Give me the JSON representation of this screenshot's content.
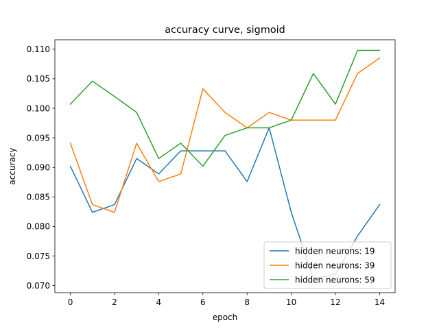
{
  "chart_data": {
    "type": "line",
    "title": "accuracy curve, sigmoid",
    "xlabel": "epoch",
    "ylabel": "accuracy",
    "x": [
      0,
      1,
      2,
      3,
      4,
      5,
      6,
      7,
      8,
      9,
      10,
      11,
      12,
      13,
      14
    ],
    "xlim": [
      -0.7,
      14.7
    ],
    "ylim": [
      0.0688,
      0.1116
    ],
    "xticks": [
      0,
      2,
      4,
      6,
      8,
      10,
      12,
      14
    ],
    "yticks": [
      0.07,
      0.075,
      0.08,
      0.085,
      0.09,
      0.095,
      0.1,
      0.105,
      0.11
    ],
    "ytick_labels": [
      "0.070",
      "0.075",
      "0.080",
      "0.085",
      "0.090",
      "0.095",
      "0.100",
      "0.105",
      "0.110"
    ],
    "grid": false,
    "legend_position": "lower-right",
    "series": [
      {
        "name": "hidden neurons: 19",
        "color": "#1f77b4",
        "values": [
          0.0902,
          0.0824,
          0.0837,
          0.0915,
          0.0889,
          0.0928,
          0.0928,
          0.0928,
          0.0876,
          0.0967,
          0.0824,
          0.0712,
          0.0719,
          0.0784,
          0.0837
        ]
      },
      {
        "name": "hidden neurons: 39",
        "color": "#ff7f0e",
        "values": [
          0.0941,
          0.0837,
          0.0824,
          0.0941,
          0.0876,
          0.0889,
          0.1033,
          0.0993,
          0.0967,
          0.0993,
          0.098,
          0.098,
          0.098,
          0.1059,
          0.1085
        ]
      },
      {
        "name": "hidden neurons: 59",
        "color": "#2ca02c",
        "values": [
          0.1007,
          0.1046,
          0.102,
          0.0993,
          0.0915,
          0.0941,
          0.0902,
          0.0954,
          0.0967,
          0.0967,
          0.098,
          0.1059,
          0.1007,
          0.1098,
          0.1098
        ]
      }
    ]
  }
}
